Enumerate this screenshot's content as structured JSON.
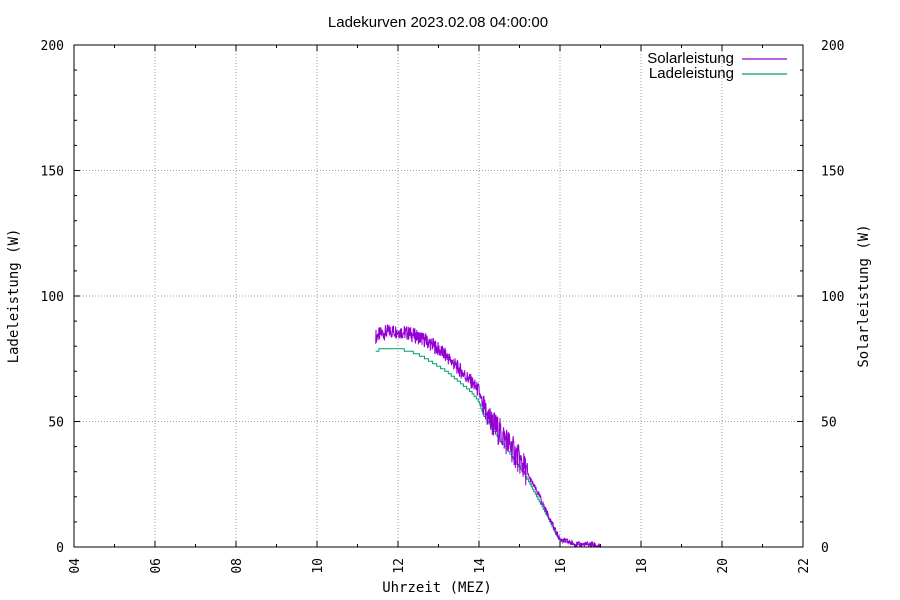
{
  "chart_data": {
    "type": "line",
    "title": "Ladekurven 2023.02.08 04:00:00",
    "xlabel": "Uhrzeit (MEZ)",
    "ylabel_left": "Ladeleistung (W)",
    "ylabel_right": "Solarleistung (W)",
    "xlim": [
      4,
      22
    ],
    "ylim": [
      0,
      200
    ],
    "x_ticks": [
      "04",
      "06",
      "08",
      "10",
      "12",
      "14",
      "16",
      "18",
      "20",
      "22"
    ],
    "y_ticks": [
      "0",
      "50",
      "100",
      "150",
      "200"
    ],
    "grid": true,
    "legend_position": "top-right",
    "series": [
      {
        "name": "Solarleistung",
        "color": "#9400d3",
        "x": [
          11.45,
          11.6,
          11.8,
          12.0,
          12.3,
          12.6,
          12.9,
          13.2,
          13.5,
          13.8,
          14.0,
          14.1,
          14.3,
          14.5,
          14.7,
          14.9,
          15.1,
          15.3,
          15.5,
          15.7,
          15.9,
          16.0,
          16.2,
          16.4,
          16.6,
          16.8,
          17.0
        ],
        "values": [
          84,
          85,
          86,
          86,
          85,
          83,
          80,
          76,
          71,
          66,
          62,
          55,
          50,
          46,
          42,
          37,
          32,
          26,
          20,
          13,
          6,
          3,
          2,
          1,
          1,
          1,
          0
        ]
      },
      {
        "name": "Ladeleistung",
        "color": "#009e73",
        "x": [
          11.45,
          11.6,
          11.8,
          12.0,
          12.3,
          12.6,
          12.9,
          13.2,
          13.5,
          13.8,
          14.0,
          14.1,
          14.3,
          14.5,
          14.7,
          14.9,
          15.1,
          15.3,
          15.5,
          15.7,
          15.9,
          16.0,
          16.2,
          16.4,
          16.6,
          16.8,
          17.0
        ],
        "values": [
          78,
          79,
          79,
          79,
          78,
          76,
          73,
          70,
          66,
          62,
          58,
          53,
          48,
          43,
          39,
          34,
          30,
          24,
          18,
          12,
          5,
          3,
          2,
          1,
          1,
          0,
          0
        ]
      }
    ]
  }
}
